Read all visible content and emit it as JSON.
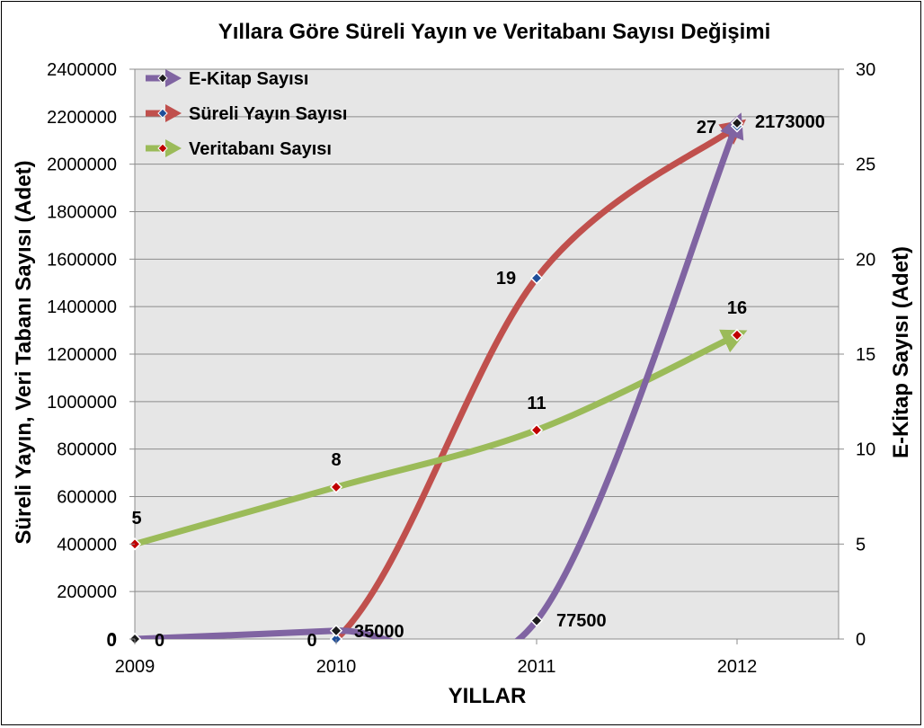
{
  "chart_data": {
    "type": "line",
    "title": "Yıllara Göre Süreli Yayın ve Veritabanı Sayısı Değişimi",
    "xlabel": "YILLAR",
    "ylabel_left": "Süreli Yayın, Veri Tabanı Sayısı (Adet)",
    "ylabel_right": "E-Kitap Sayısı (Adet)",
    "categories": [
      "2009",
      "2010",
      "2011",
      "2012"
    ],
    "ylim_left": [
      0,
      2400000
    ],
    "yticks_left": [
      "0",
      "200000",
      "400000",
      "600000",
      "800000",
      "1000000",
      "1200000",
      "1400000",
      "1600000",
      "1800000",
      "2000000",
      "2200000",
      "2400000"
    ],
    "ylim_right": [
      0,
      30
    ],
    "yticks_right": [
      "0",
      "5",
      "10",
      "15",
      "20",
      "25",
      "30"
    ],
    "grid": true,
    "legend_position": "top-left",
    "series": [
      {
        "name": "E-Kitap Sayısı",
        "axis": "left",
        "values": [
          0,
          35000,
          77500,
          2173000
        ],
        "labels": [
          "0",
          "35000",
          "77500",
          "2173000"
        ],
        "color": "#8064A2",
        "marker_color": "#1a1a1a"
      },
      {
        "name": "Süreli Yayın Sayısı",
        "axis": "right",
        "values": [
          0,
          0,
          19,
          27
        ],
        "labels": [
          "0",
          "0",
          "19",
          "27"
        ],
        "color": "#C0504D",
        "marker_color": "#1f4e9a"
      },
      {
        "name": "Veritabanı Sayısı",
        "axis": "right",
        "values": [
          5,
          8,
          11,
          16
        ],
        "labels": [
          "5",
          "8",
          "11",
          "16"
        ],
        "color": "#9BBB59",
        "marker_color": "#c00000"
      }
    ]
  }
}
